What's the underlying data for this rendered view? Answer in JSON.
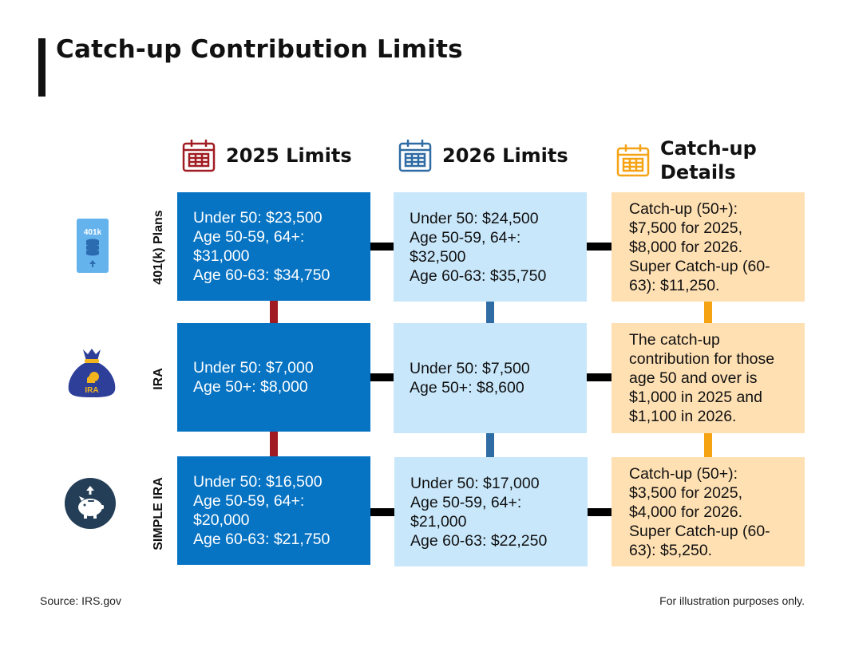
{
  "title": "Catch-up Contribution Limits",
  "columns": {
    "limits_2025": {
      "label": "2025 Limits",
      "color": "#a01c22"
    },
    "limits_2026": {
      "label": "2026 Limits",
      "color": "#2f6ca3"
    },
    "catchup": {
      "label_line1": "Catch-up",
      "label_line2": "Details",
      "color": "#f5a313"
    }
  },
  "rows": [
    {
      "label": "401(k) Plans",
      "icon": "401k-server-icon",
      "icon_text": "401k",
      "limits_2025": [
        "Under 50: $23,500",
        "Age 50-59, 64+:",
        "$31,000",
        "Age 60-63: $34,750"
      ],
      "limits_2026": [
        "Under 50: $24,500",
        "Age 50-59, 64+:",
        "$32,500",
        "Age 60-63: $35,750"
      ],
      "catchup": [
        "Catch-up (50+):",
        "$7,500 for 2025,",
        "$8,000 for 2026.",
        "Super Catch-up (60-",
        "63): $11,250."
      ]
    },
    {
      "label": "IRA",
      "icon": "ira-money-bag-icon",
      "icon_text": "IRA",
      "limits_2025": [
        "Under 50: $7,000",
        "Age 50+: $8,000"
      ],
      "limits_2026": [
        "Under 50: $7,500",
        "Age 50+: $8,600"
      ],
      "catchup": [
        "The catch-up",
        "contribution for those",
        "age 50 and over is",
        "$1,000 in 2025 and",
        "$1,100 in 2026."
      ]
    },
    {
      "label": "SIMPLE IRA",
      "icon": "piggy-bank-icon",
      "limits_2025": [
        "Under 50: $16,500",
        "Age 50-59, 64+:",
        "$20,000",
        "Age 60-63: $21,750"
      ],
      "limits_2026": [
        "Under 50: $17,000",
        "Age 50-59, 64+:",
        "$21,000",
        "Age 60-63: $22,250"
      ],
      "catchup": [
        "Catch-up (50+):",
        "$3,500 for 2025,",
        "$4,000 for 2026.",
        "Super Catch-up (60-",
        "63): $5,250."
      ]
    }
  ],
  "footer": {
    "source": "Source: IRS.gov",
    "disclaimer": "For illustration purposes only."
  },
  "colors": {
    "card_2025": "#0673c3",
    "card_2026": "#c8e7fb",
    "card_catchup": "#ffe0b3",
    "connector": "#000000"
  }
}
